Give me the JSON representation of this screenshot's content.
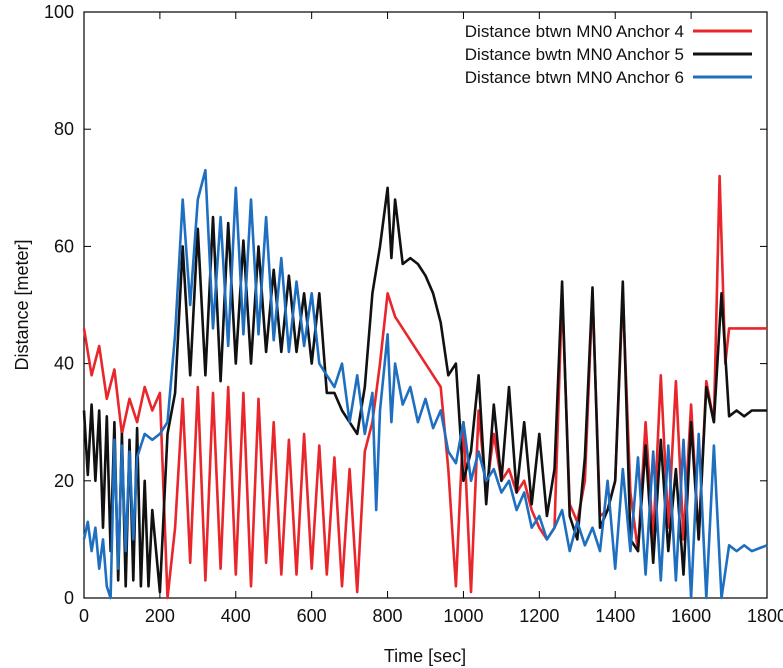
{
  "chart_data": {
    "type": "line",
    "xlabel": "Time [sec]",
    "ylabel": "Distance [meter]",
    "xlim": [
      0,
      1800
    ],
    "ylim": [
      0,
      100
    ],
    "xticks": [
      "0",
      "200",
      "400",
      "600",
      "800",
      "1000",
      "1200",
      "1400",
      "1600",
      "1800"
    ],
    "yticks": [
      "0",
      "20",
      "40",
      "60",
      "80",
      "100"
    ],
    "grid": false,
    "legend_position": "top-right",
    "series": [
      {
        "name": "Distance btwn MN0 Anchor 4",
        "color": "#e8262b",
        "points": [
          [
            0,
            46
          ],
          [
            20,
            38
          ],
          [
            40,
            43
          ],
          [
            60,
            34
          ],
          [
            80,
            39
          ],
          [
            100,
            28
          ],
          [
            120,
            34
          ],
          [
            140,
            30
          ],
          [
            160,
            36
          ],
          [
            180,
            32
          ],
          [
            200,
            35
          ],
          [
            220,
            0
          ],
          [
            240,
            12
          ],
          [
            260,
            34
          ],
          [
            280,
            6
          ],
          [
            300,
            36
          ],
          [
            320,
            3
          ],
          [
            340,
            35
          ],
          [
            360,
            5
          ],
          [
            380,
            36
          ],
          [
            400,
            4
          ],
          [
            420,
            35
          ],
          [
            440,
            2
          ],
          [
            460,
            34
          ],
          [
            480,
            6
          ],
          [
            500,
            30
          ],
          [
            520,
            4
          ],
          [
            540,
            27
          ],
          [
            560,
            4
          ],
          [
            580,
            28
          ],
          [
            600,
            5
          ],
          [
            620,
            26
          ],
          [
            640,
            4
          ],
          [
            660,
            24
          ],
          [
            680,
            2
          ],
          [
            700,
            22
          ],
          [
            720,
            1
          ],
          [
            740,
            25
          ],
          [
            760,
            30
          ],
          [
            780,
            40
          ],
          [
            800,
            52
          ],
          [
            820,
            48
          ],
          [
            840,
            46
          ],
          [
            860,
            44
          ],
          [
            880,
            42
          ],
          [
            900,
            40
          ],
          [
            920,
            38
          ],
          [
            940,
            36
          ],
          [
            960,
            22
          ],
          [
            980,
            2
          ],
          [
            1000,
            30
          ],
          [
            1020,
            1
          ],
          [
            1040,
            32
          ],
          [
            1060,
            18
          ],
          [
            1080,
            28
          ],
          [
            1100,
            20
          ],
          [
            1120,
            22
          ],
          [
            1140,
            18
          ],
          [
            1160,
            20
          ],
          [
            1180,
            15
          ],
          [
            1200,
            12
          ],
          [
            1220,
            10
          ],
          [
            1240,
            12
          ],
          [
            1260,
            52
          ],
          [
            1280,
            16
          ],
          [
            1300,
            13
          ],
          [
            1320,
            20
          ],
          [
            1340,
            52
          ],
          [
            1360,
            14
          ],
          [
            1380,
            15
          ],
          [
            1400,
            20
          ],
          [
            1420,
            52
          ],
          [
            1440,
            18
          ],
          [
            1460,
            8
          ],
          [
            1480,
            30
          ],
          [
            1500,
            10
          ],
          [
            1520,
            38
          ],
          [
            1540,
            12
          ],
          [
            1560,
            37
          ],
          [
            1580,
            10
          ],
          [
            1600,
            33
          ],
          [
            1620,
            10
          ],
          [
            1640,
            37
          ],
          [
            1660,
            30
          ],
          [
            1675,
            72
          ],
          [
            1690,
            40
          ],
          [
            1700,
            46
          ],
          [
            1760,
            46
          ],
          [
            1800,
            46
          ]
        ]
      },
      {
        "name": "Distance bwtn MN0 Anchor 5",
        "color": "#111111",
        "points": [
          [
            0,
            32
          ],
          [
            10,
            21
          ],
          [
            20,
            33
          ],
          [
            30,
            20
          ],
          [
            40,
            32
          ],
          [
            50,
            12
          ],
          [
            60,
            31
          ],
          [
            70,
            8
          ],
          [
            80,
            30
          ],
          [
            90,
            3
          ],
          [
            100,
            28
          ],
          [
            110,
            2
          ],
          [
            120,
            27
          ],
          [
            130,
            3
          ],
          [
            140,
            29
          ],
          [
            150,
            2
          ],
          [
            160,
            20
          ],
          [
            170,
            2
          ],
          [
            180,
            15
          ],
          [
            200,
            1
          ],
          [
            220,
            28
          ],
          [
            240,
            35
          ],
          [
            260,
            60
          ],
          [
            280,
            38
          ],
          [
            300,
            63
          ],
          [
            320,
            38
          ],
          [
            340,
            65
          ],
          [
            360,
            37
          ],
          [
            380,
            64
          ],
          [
            400,
            40
          ],
          [
            420,
            61
          ],
          [
            440,
            40
          ],
          [
            460,
            60
          ],
          [
            480,
            42
          ],
          [
            500,
            56
          ],
          [
            520,
            42
          ],
          [
            540,
            55
          ],
          [
            560,
            42
          ],
          [
            580,
            52
          ],
          [
            600,
            40
          ],
          [
            620,
            52
          ],
          [
            640,
            35
          ],
          [
            660,
            35
          ],
          [
            680,
            32
          ],
          [
            700,
            30
          ],
          [
            720,
            28
          ],
          [
            740,
            36
          ],
          [
            760,
            52
          ],
          [
            780,
            60
          ],
          [
            800,
            70
          ],
          [
            810,
            58
          ],
          [
            820,
            68
          ],
          [
            840,
            57
          ],
          [
            860,
            58
          ],
          [
            880,
            57
          ],
          [
            900,
            55
          ],
          [
            920,
            52
          ],
          [
            940,
            47
          ],
          [
            960,
            38
          ],
          [
            980,
            40
          ],
          [
            1000,
            20
          ],
          [
            1020,
            25
          ],
          [
            1040,
            38
          ],
          [
            1060,
            16
          ],
          [
            1080,
            33
          ],
          [
            1100,
            20
          ],
          [
            1120,
            36
          ],
          [
            1140,
            18
          ],
          [
            1160,
            30
          ],
          [
            1180,
            16
          ],
          [
            1200,
            28
          ],
          [
            1220,
            14
          ],
          [
            1240,
            22
          ],
          [
            1260,
            54
          ],
          [
            1280,
            14
          ],
          [
            1300,
            10
          ],
          [
            1320,
            24
          ],
          [
            1340,
            53
          ],
          [
            1360,
            12
          ],
          [
            1380,
            15
          ],
          [
            1400,
            20
          ],
          [
            1420,
            54
          ],
          [
            1440,
            10
          ],
          [
            1460,
            8
          ],
          [
            1480,
            26
          ],
          [
            1500,
            6
          ],
          [
            1520,
            27
          ],
          [
            1540,
            8
          ],
          [
            1560,
            22
          ],
          [
            1580,
            4
          ],
          [
            1600,
            30
          ],
          [
            1620,
            10
          ],
          [
            1640,
            36
          ],
          [
            1660,
            30
          ],
          [
            1680,
            52
          ],
          [
            1700,
            31
          ],
          [
            1720,
            32
          ],
          [
            1740,
            31
          ],
          [
            1760,
            32
          ],
          [
            1800,
            32
          ]
        ]
      },
      {
        "name": "Distance btwn MN0 Anchor 6",
        "color": "#1f6fc0",
        "points": [
          [
            0,
            10
          ],
          [
            10,
            13
          ],
          [
            20,
            8
          ],
          [
            30,
            12
          ],
          [
            40,
            5
          ],
          [
            50,
            10
          ],
          [
            60,
            2
          ],
          [
            70,
            0
          ],
          [
            80,
            27
          ],
          [
            90,
            5
          ],
          [
            100,
            26
          ],
          [
            110,
            8
          ],
          [
            120,
            25
          ],
          [
            130,
            10
          ],
          [
            140,
            24
          ],
          [
            160,
            28
          ],
          [
            180,
            27
          ],
          [
            200,
            28
          ],
          [
            220,
            30
          ],
          [
            240,
            45
          ],
          [
            260,
            68
          ],
          [
            280,
            50
          ],
          [
            300,
            68
          ],
          [
            320,
            73
          ],
          [
            340,
            46
          ],
          [
            360,
            65
          ],
          [
            380,
            43
          ],
          [
            400,
            70
          ],
          [
            420,
            45
          ],
          [
            440,
            68
          ],
          [
            460,
            45
          ],
          [
            480,
            65
          ],
          [
            500,
            44
          ],
          [
            520,
            58
          ],
          [
            540,
            42
          ],
          [
            560,
            54
          ],
          [
            580,
            43
          ],
          [
            600,
            52
          ],
          [
            620,
            40
          ],
          [
            640,
            38
          ],
          [
            660,
            36
          ],
          [
            680,
            40
          ],
          [
            700,
            30
          ],
          [
            720,
            38
          ],
          [
            740,
            28
          ],
          [
            760,
            35
          ],
          [
            770,
            15
          ],
          [
            780,
            32
          ],
          [
            800,
            45
          ],
          [
            810,
            30
          ],
          [
            820,
            40
          ],
          [
            840,
            33
          ],
          [
            860,
            36
          ],
          [
            880,
            30
          ],
          [
            900,
            34
          ],
          [
            920,
            29
          ],
          [
            940,
            32
          ],
          [
            960,
            25
          ],
          [
            980,
            23
          ],
          [
            1000,
            30
          ],
          [
            1020,
            20
          ],
          [
            1040,
            25
          ],
          [
            1060,
            20
          ],
          [
            1080,
            22
          ],
          [
            1100,
            18
          ],
          [
            1120,
            20
          ],
          [
            1140,
            15
          ],
          [
            1160,
            18
          ],
          [
            1180,
            12
          ],
          [
            1200,
            14
          ],
          [
            1220,
            10
          ],
          [
            1240,
            12
          ],
          [
            1260,
            15
          ],
          [
            1280,
            8
          ],
          [
            1300,
            13
          ],
          [
            1320,
            9
          ],
          [
            1340,
            12
          ],
          [
            1360,
            8
          ],
          [
            1380,
            20
          ],
          [
            1400,
            5
          ],
          [
            1420,
            22
          ],
          [
            1440,
            8
          ],
          [
            1460,
            24
          ],
          [
            1480,
            4
          ],
          [
            1500,
            25
          ],
          [
            1520,
            3
          ],
          [
            1540,
            26
          ],
          [
            1560,
            3
          ],
          [
            1580,
            27
          ],
          [
            1600,
            0
          ],
          [
            1620,
            28
          ],
          [
            1640,
            0
          ],
          [
            1660,
            26
          ],
          [
            1680,
            0
          ],
          [
            1700,
            9
          ],
          [
            1720,
            8
          ],
          [
            1740,
            9
          ],
          [
            1760,
            8
          ],
          [
            1800,
            9
          ]
        ]
      }
    ]
  }
}
